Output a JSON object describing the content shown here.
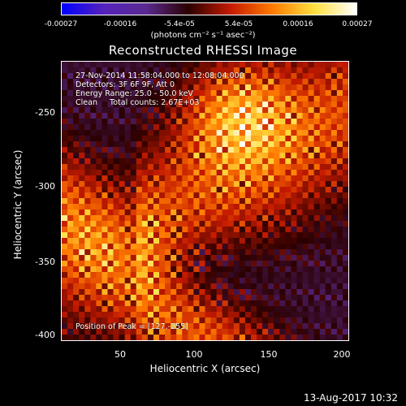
{
  "colorbar": {
    "tick_labels": [
      "-0.00027",
      "-0.00016",
      "-5.4e-05",
      "5.4e-05",
      "0.00016",
      "0.00027"
    ],
    "unit_label": "(photons cm⁻² s⁻¹ asec⁻²)",
    "range": [
      -0.00027,
      0.00027
    ],
    "colormap": [
      "#0000ff",
      "#5522bb",
      "#5a2a90",
      "#2a0000",
      "#c41a00",
      "#ff7a00",
      "#ffe040",
      "#ffffff"
    ]
  },
  "chart_data": {
    "type": "heatmap",
    "title": "Reconstructed RHESSI Image",
    "xlabel": "Heliocentric X (arcsec)",
    "ylabel": "Heliocentric Y (arcsec)",
    "xlim": [
      10,
      200
    ],
    "ylim": [
      -405,
      -220
    ],
    "x_ticks": [
      "50",
      "100",
      "150",
      "200"
    ],
    "y_ticks": [
      "-250",
      "-300",
      "-350",
      "-400"
    ],
    "annotations": [
      "27-Nov-2014 11:58:04.000 to 12:08:04.000",
      "Detectors: 3F 6F 9F, Att 0",
      "Energy Range: 25.0 - 50.0 keV",
      "Clean     Total counts: 2.67E+03"
    ],
    "peak_label": "Position of Peak = [127,-255]",
    "peak_position": [
      127,
      -255
    ],
    "grid": false
  },
  "timestamp": "13-Aug-2017 10:32"
}
